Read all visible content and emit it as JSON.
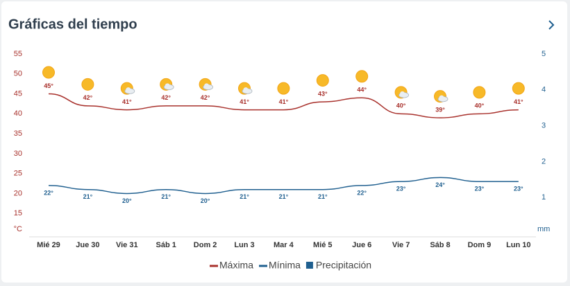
{
  "header": {
    "title": "Gráficas del tiempo"
  },
  "chart_data": {
    "type": "line",
    "categories": [
      "Mié 29",
      "Jue 30",
      "Vie 31",
      "Sáb 1",
      "Dom 2",
      "Lun 3",
      "Mar 4",
      "Mié 5",
      "Jue 6",
      "Vie 7",
      "Sáb 8",
      "Dom 9",
      "Lun 10"
    ],
    "series": [
      {
        "name": "Máxima",
        "color": "#a8302b",
        "values": [
          45,
          42,
          41,
          42,
          42,
          41,
          41,
          43,
          44,
          40,
          39,
          40,
          41
        ],
        "value_labels": [
          "45°",
          "42°",
          "41°",
          "42°",
          "42°",
          "41°",
          "41°",
          "43°",
          "44°",
          "40°",
          "39°",
          "40°",
          "41°"
        ]
      },
      {
        "name": "Mínima",
        "color": "#1f5f8f",
        "values": [
          22,
          21,
          20,
          21,
          20,
          21,
          21,
          21,
          22,
          23,
          24,
          23,
          23
        ],
        "value_labels": [
          "22°",
          "21°",
          "20°",
          "21°",
          "20°",
          "21°",
          "21°",
          "21°",
          "22°",
          "23°",
          "24°",
          "23°",
          "23°"
        ]
      },
      {
        "name": "Precipitación",
        "color": "#1f5f8f",
        "axis": "y2",
        "values": [
          null,
          null,
          null,
          null,
          null,
          null,
          null,
          null,
          null,
          null,
          null,
          null,
          null
        ]
      }
    ],
    "y_label": "°C",
    "y2_label": "mm",
    "ylim": [
      10,
      55
    ],
    "yticks": [
      15,
      20,
      25,
      30,
      35,
      40,
      45,
      50,
      55
    ],
    "y2lim": [
      0,
      5
    ],
    "y2ticks": [
      1,
      2,
      3,
      4,
      5
    ],
    "grid": false,
    "legend": "bottom"
  }
}
